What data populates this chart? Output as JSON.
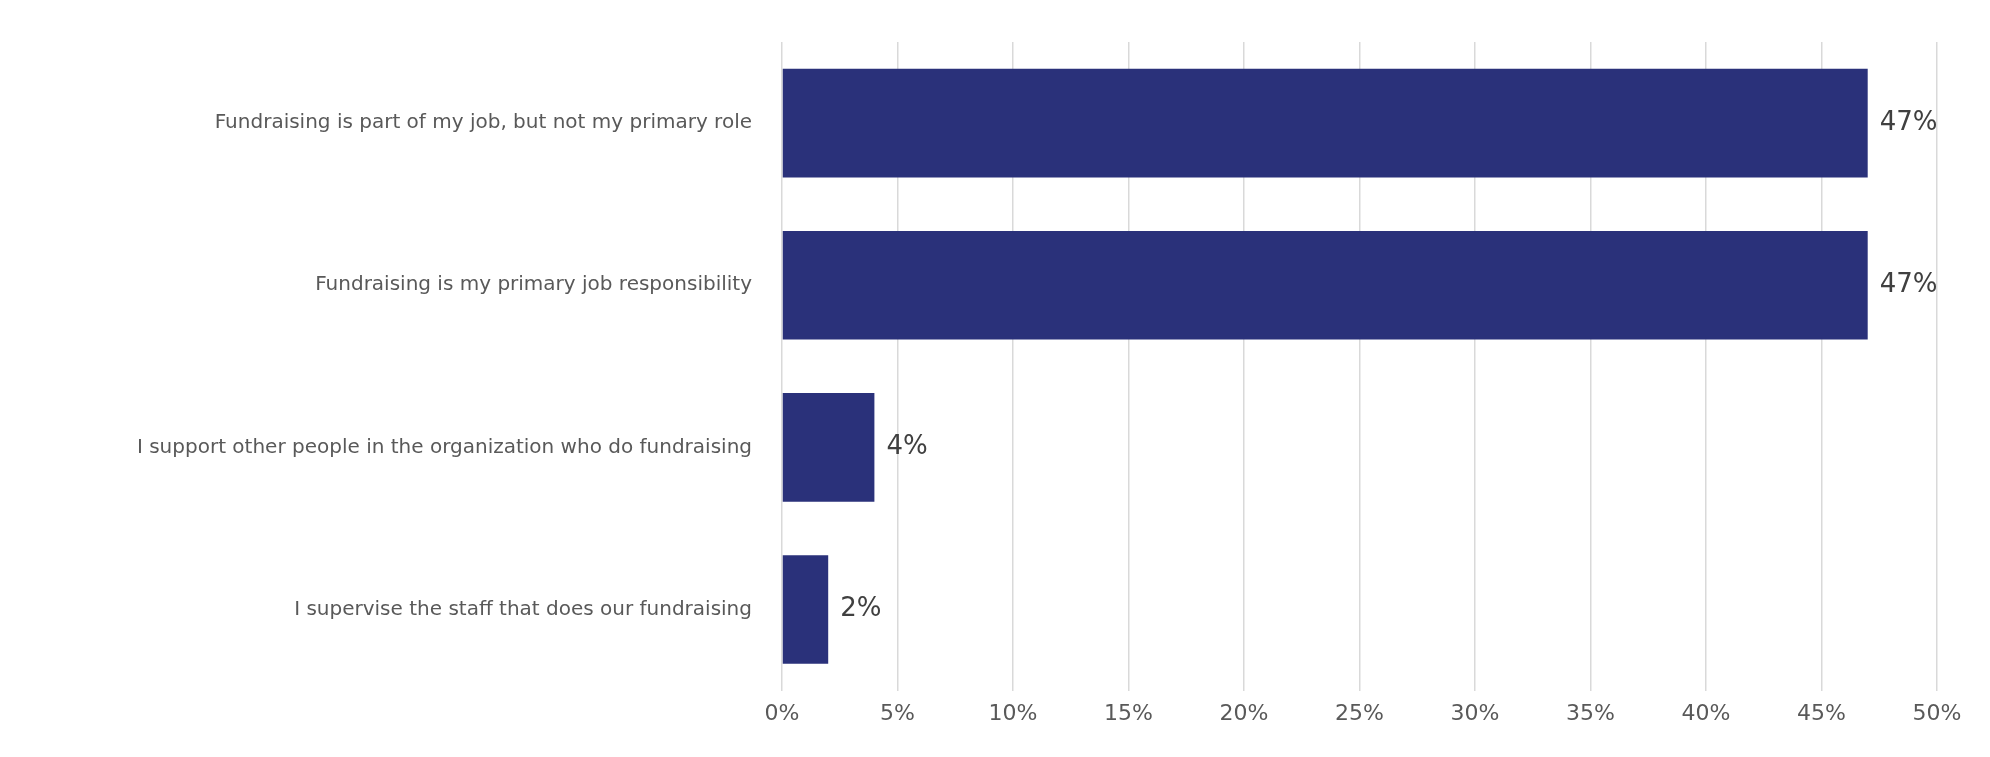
{
  "chart_data": {
    "type": "bar",
    "orientation": "horizontal",
    "categories": [
      "Fundraising is part of my job, but not my primary role",
      "Fundraising is my primary job responsibility",
      "I support other people in the organization who do fundraising",
      "I supervise the staff that does our fundraising"
    ],
    "values": [
      47,
      47,
      4,
      2
    ],
    "color": "#2a317a",
    "value_labels": [
      "47%",
      "47%",
      "4%",
      "2%"
    ],
    "xlim": [
      0,
      50
    ],
    "xticks": [
      {
        "value": 0,
        "label": "0%"
      },
      {
        "value": 5,
        "label": "5%"
      },
      {
        "value": 10,
        "label": "10%"
      },
      {
        "value": 15,
        "label": "15%"
      },
      {
        "value": 20,
        "label": "20%"
      },
      {
        "value": 25,
        "label": "25%"
      },
      {
        "value": 30,
        "label": "30%"
      },
      {
        "value": 35,
        "label": "35%"
      },
      {
        "value": 40,
        "label": "40%"
      },
      {
        "value": 45,
        "label": "45%"
      },
      {
        "value": 50,
        "label": "50%"
      }
    ],
    "grid": "x"
  }
}
